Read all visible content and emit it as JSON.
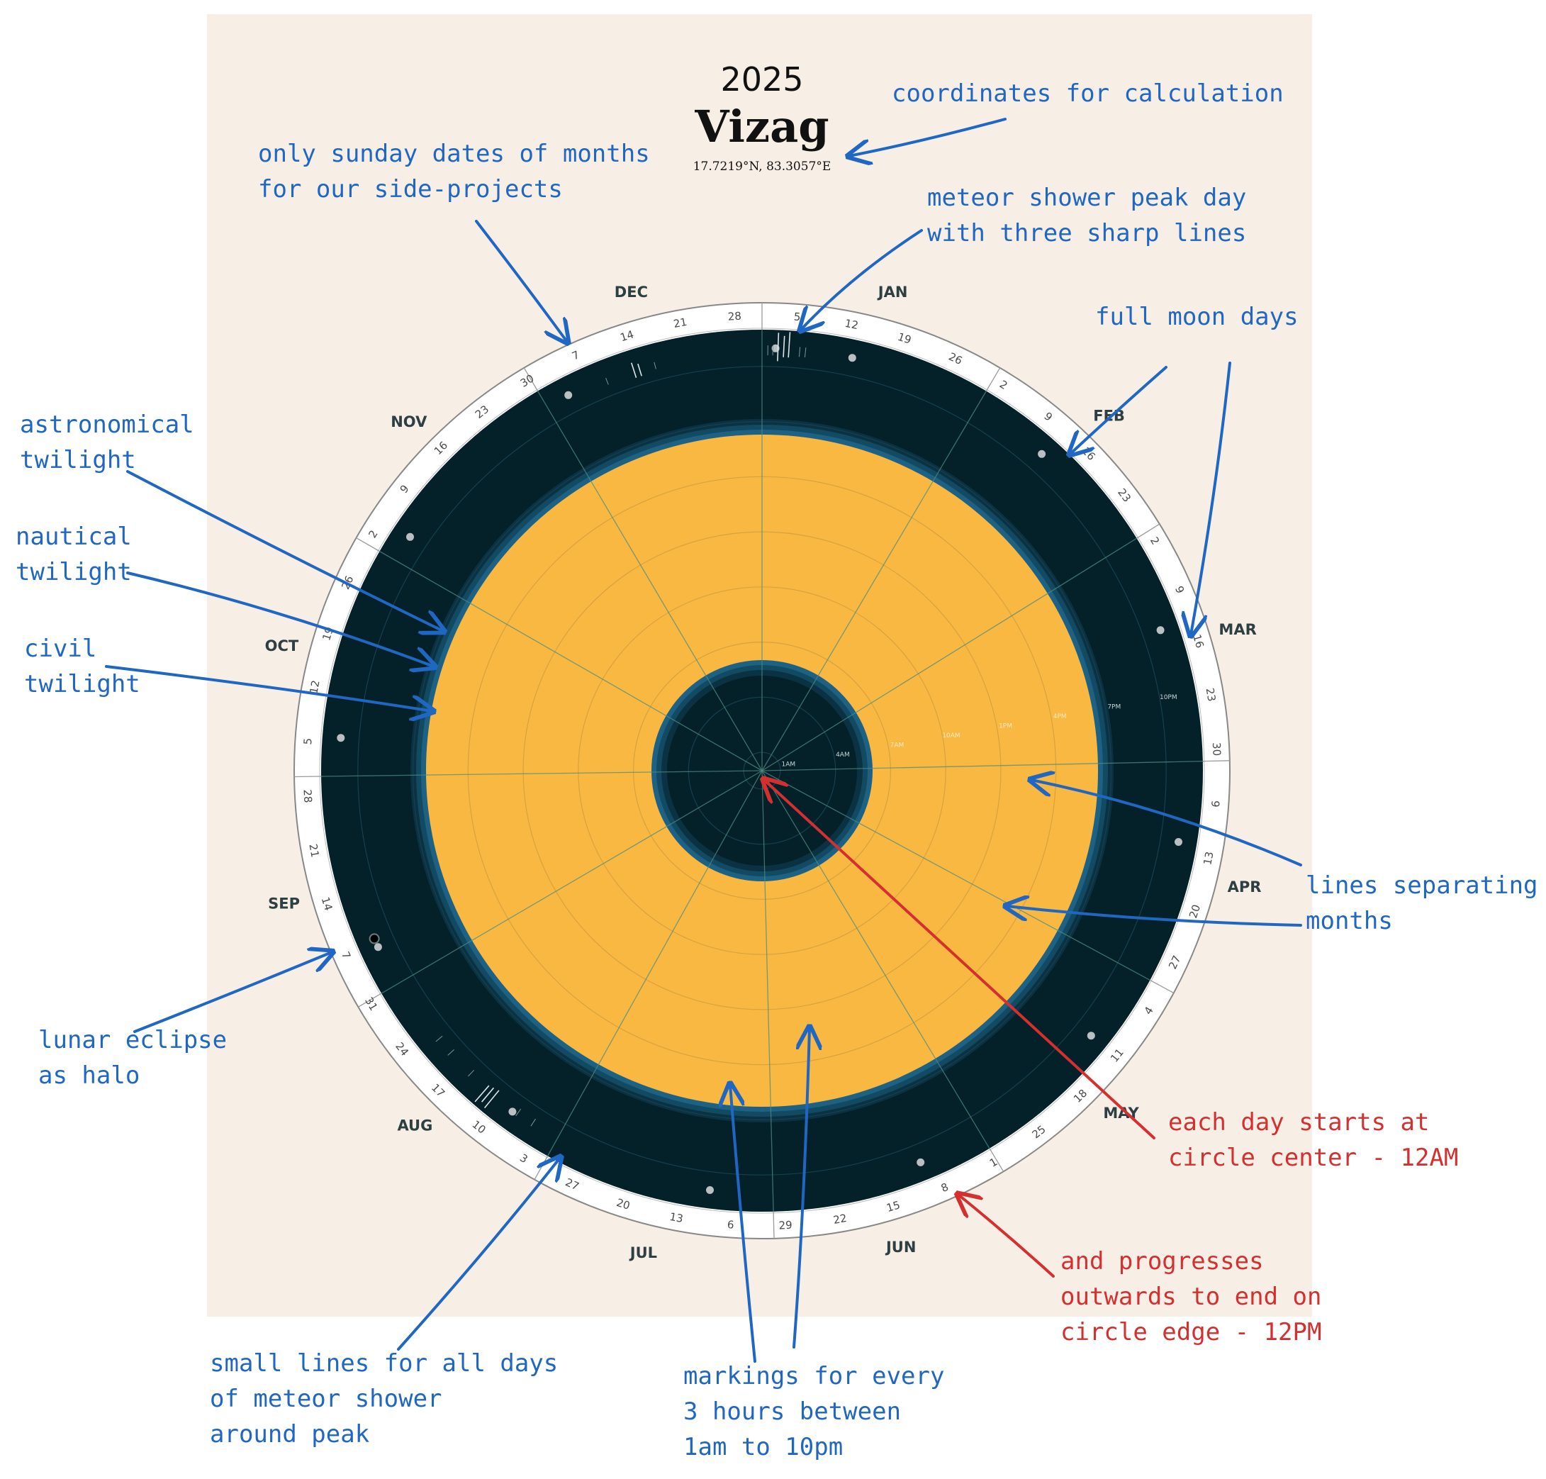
{
  "poster": {
    "year": "2025",
    "city": "Vizag",
    "coordinates": "17.7219°N, 83.3057°E",
    "colors": {
      "paper": "#f7efe6",
      "night": "#04212a",
      "astronomical": "#0b3242",
      "nautical": "#124a62",
      "civil": "#1d6185",
      "day": "#f8b842",
      "ink": "#111111"
    }
  },
  "months": [
    "JAN",
    "FEB",
    "MAR",
    "APR",
    "MAY",
    "JUN",
    "JUL",
    "AUG",
    "SEP",
    "OCT",
    "NOV",
    "DEC"
  ],
  "sundays": [
    [
      "5",
      "12",
      "19",
      "26"
    ],
    [
      "2",
      "9",
      "16",
      "23"
    ],
    [
      "2",
      "9",
      "16",
      "23",
      "30"
    ],
    [
      "6",
      "13",
      "20",
      "27"
    ],
    [
      "4",
      "11",
      "18",
      "25"
    ],
    [
      "1",
      "8",
      "15",
      "22",
      "29"
    ],
    [
      "6",
      "13",
      "20",
      "27"
    ],
    [
      "3",
      "10",
      "17",
      "24",
      "31"
    ],
    [
      "7",
      "14",
      "21",
      "28"
    ],
    [
      "5",
      "12",
      "19",
      "26"
    ],
    [
      "2",
      "9",
      "16",
      "23",
      "30"
    ],
    [
      "7",
      "14",
      "21",
      "28"
    ]
  ],
  "hour_labels": [
    "1AM",
    "4AM",
    "7AM",
    "10AM",
    "1PM",
    "4PM",
    "7PM",
    "10PM"
  ],
  "annotations": {
    "coordinates": [
      "coordinates for calculation"
    ],
    "sundays": [
      "only sunday dates of months",
      "for our side-projects"
    ],
    "meteor_peak": [
      "meteor shower peak day",
      "with three sharp lines"
    ],
    "full_moon": [
      "full moon days"
    ],
    "astronomical": [
      "astronomical",
      "twilight"
    ],
    "nautical": [
      "nautical",
      "twilight"
    ],
    "civil": [
      "civil",
      "twilight"
    ],
    "month_lines": [
      "lines separating",
      "months"
    ],
    "lunar_eclipse": [
      "lunar eclipse",
      "as halo"
    ],
    "day_start": [
      "each day starts at",
      "circle center - 12AM"
    ],
    "day_end": [
      "and progresses",
      "outwards to end on",
      "circle edge - 12PM"
    ],
    "meteor_days": [
      "small lines for all days",
      "of meteor shower",
      "around peak"
    ],
    "hour_marks": [
      "markings for every",
      "3 hours between",
      "1am to 10pm"
    ]
  },
  "annotation_colors": {
    "blue": "#1f67c2",
    "red": "#d43030"
  }
}
